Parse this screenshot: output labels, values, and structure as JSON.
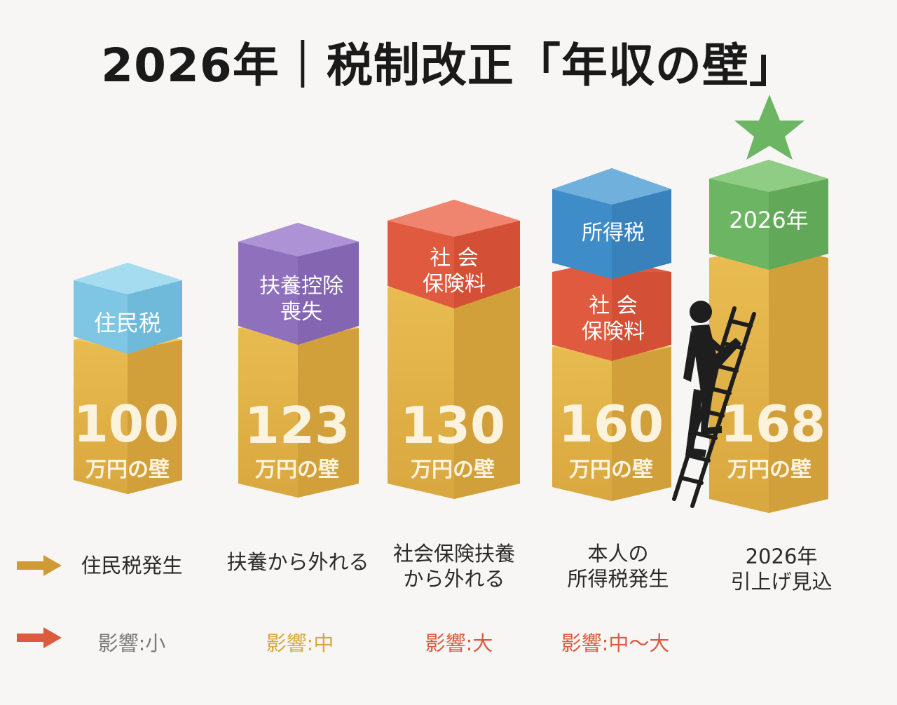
{
  "title": "2026年｜税制改正「年収の壁」",
  "colors": {
    "gold": "#e2b54b",
    "light_blue": "#7ec6e4",
    "purple": "#8f70bd",
    "red": "#e05a3f",
    "blue": "#3f8dc8",
    "green": "#6bb563",
    "gold_arrow": "#cf9b34",
    "red_arrow": "#dc5b3e"
  },
  "bars": [
    {
      "amount": "100",
      "unit": "万円の壁",
      "top_blocks": [
        {
          "label": "住民税",
          "color": "light_blue"
        }
      ],
      "description": "住民税発生",
      "impact": "影響:小",
      "impact_color": "#7a7a7a"
    },
    {
      "amount": "123",
      "unit": "万円の壁",
      "top_blocks": [
        {
          "label": "扶養控除\n喪失",
          "color": "purple"
        }
      ],
      "description": "扶養から外れる",
      "impact": "影響:中",
      "impact_color": "#d5a93f"
    },
    {
      "amount": "130",
      "unit": "万円の壁",
      "top_blocks": [
        {
          "label": "社 会\n保険料",
          "color": "red"
        }
      ],
      "description": "社会保険扶養\nから外れる",
      "impact": "影響:大",
      "impact_color": "#dc5b3e"
    },
    {
      "amount": "160",
      "unit": "万円の壁",
      "top_blocks": [
        {
          "label": "社 会\n保険料",
          "color": "red"
        },
        {
          "label": "所得税",
          "color": "blue"
        }
      ],
      "description": "本人の\n所得税発生",
      "impact": "影響:中〜大",
      "impact_color": "#dc5b3e"
    },
    {
      "amount": "168",
      "unit": "万円の壁",
      "top_blocks": [
        {
          "label": "2026年",
          "color": "green"
        }
      ],
      "description": "2026年\n引上げ見込",
      "impact": "",
      "impact_color": "#7a7a7a"
    }
  ],
  "legend_icons": [
    "gold-arrow-icon",
    "red-arrow-icon"
  ],
  "figure_icons": [
    "star-icon",
    "ladder-icon",
    "climbing-person-icon"
  ]
}
